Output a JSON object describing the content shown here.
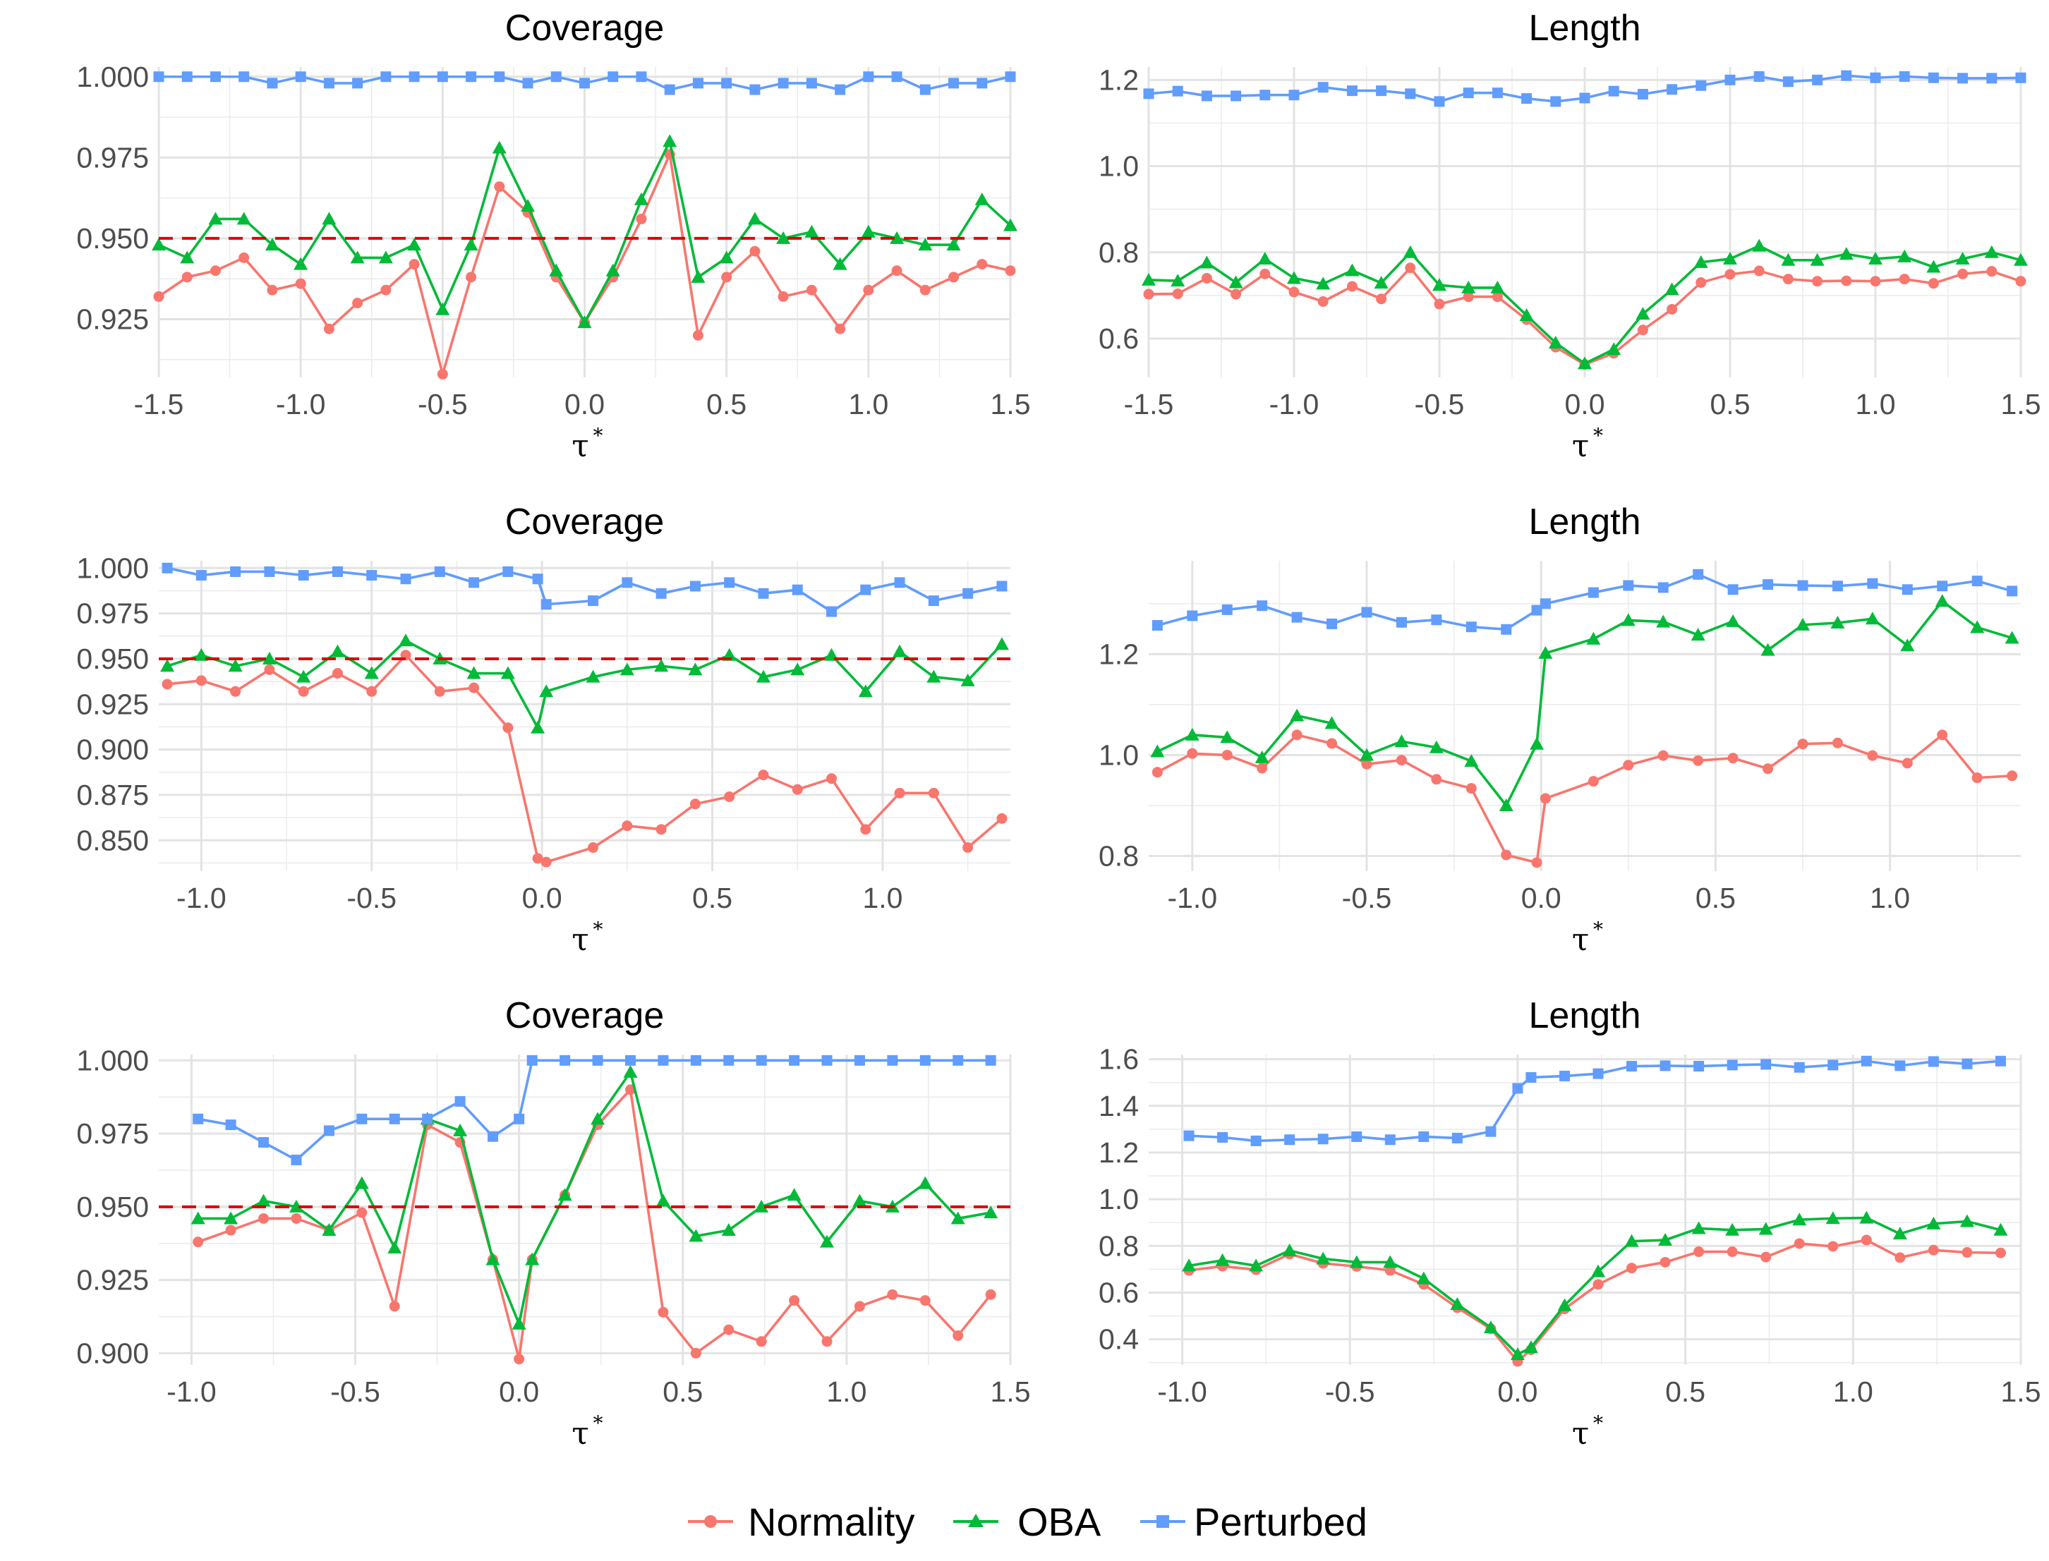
{
  "legend": {
    "entries": [
      {
        "name": "Normality",
        "color": "#F8766D",
        "marker": "circle"
      },
      {
        "name": "OBA",
        "color": "#00BA38",
        "marker": "triangle"
      },
      {
        "name": "Perturbed",
        "color": "#619CFF",
        "marker": "square"
      }
    ]
  },
  "chart_data": [
    {
      "type": "line",
      "title": "Coverage",
      "xlabel": "τ",
      "xlabel_sup": "*",
      "xlim": [
        -1.5,
        1.5
      ],
      "ylim": [
        0.907,
        1.003
      ],
      "xticks": [
        -1.5,
        -1.0,
        -0.5,
        0.0,
        0.5,
        1.0,
        1.5
      ],
      "xtick_labels": [
        "-1.5",
        "-1.0",
        "-0.5",
        "0.0",
        "0.5",
        "1.0",
        "1.5"
      ],
      "yticks": [
        0.925,
        0.95,
        0.975,
        1.0
      ],
      "ytick_labels": [
        "0.925",
        "0.950",
        "0.975",
        "1.000"
      ],
      "hline": 0.95,
      "hline_color": "#E00000",
      "x": [
        -1.5,
        -1.4,
        -1.3,
        -1.2,
        -1.1,
        -1.0,
        -0.9,
        -0.8,
        -0.7,
        -0.6,
        -0.5,
        -0.4,
        -0.3,
        -0.2,
        -0.1,
        0.0,
        0.1,
        0.2,
        0.3,
        0.4,
        0.5,
        0.6,
        0.7,
        0.8,
        0.9,
        1.0,
        1.1,
        1.2,
        1.3,
        1.4,
        1.5
      ],
      "series": [
        {
          "name": "Normality",
          "values": [
            0.932,
            0.938,
            0.94,
            0.944,
            0.934,
            0.936,
            0.922,
            0.93,
            0.934,
            0.942,
            0.908,
            0.938,
            0.966,
            0.958,
            0.938,
            0.924,
            0.938,
            0.956,
            0.976,
            0.92,
            0.938,
            0.946,
            0.932,
            0.934,
            0.922,
            0.934,
            0.94,
            0.934,
            0.938,
            0.942,
            0.94
          ]
        },
        {
          "name": "OBA",
          "values": [
            0.948,
            0.944,
            0.956,
            0.956,
            0.948,
            0.942,
            0.956,
            0.944,
            0.944,
            0.948,
            0.928,
            0.948,
            0.978,
            0.96,
            0.94,
            0.924,
            0.94,
            0.962,
            0.98,
            0.938,
            0.944,
            0.956,
            0.95,
            0.952,
            0.942,
            0.952,
            0.95,
            0.948,
            0.948,
            0.962,
            0.954
          ]
        },
        {
          "name": "Perturbed",
          "values": [
            1.0,
            1.0,
            1.0,
            1.0,
            0.998,
            1.0,
            0.998,
            0.998,
            1.0,
            1.0,
            1.0,
            1.0,
            1.0,
            0.998,
            1.0,
            0.998,
            1.0,
            1.0,
            0.996,
            0.998,
            0.998,
            0.996,
            0.998,
            0.998,
            0.996,
            1.0,
            1.0,
            0.996,
            0.998,
            0.998,
            1.0
          ]
        }
      ]
    },
    {
      "type": "line",
      "title": "Length",
      "xlabel": "τ",
      "xlabel_sup": "*",
      "xlim": [
        -1.5,
        1.5
      ],
      "ylim": [
        0.51,
        1.23
      ],
      "xticks": [
        -1.5,
        -1.0,
        -0.5,
        0.0,
        0.5,
        1.0,
        1.5
      ],
      "xtick_labels": [
        "-1.5",
        "-1.0",
        "-0.5",
        "0.0",
        "0.5",
        "1.0",
        "1.5"
      ],
      "yticks": [
        0.6,
        0.8,
        1.0,
        1.2
      ],
      "ytick_labels": [
        "0.6",
        "0.8",
        "1.0",
        "1.2"
      ],
      "x": [
        -1.5,
        -1.4,
        -1.3,
        -1.2,
        -1.1,
        -1.0,
        -0.9,
        -0.8,
        -0.7,
        -0.6,
        -0.5,
        -0.4,
        -0.3,
        -0.2,
        -0.1,
        0.0,
        0.1,
        0.2,
        0.3,
        0.4,
        0.5,
        0.6,
        0.7,
        0.8,
        0.9,
        1.0,
        1.1,
        1.2,
        1.3,
        1.4,
        1.5
      ],
      "series": [
        {
          "name": "Normality",
          "values": [
            0.703,
            0.704,
            0.74,
            0.703,
            0.75,
            0.708,
            0.686,
            0.721,
            0.692,
            0.764,
            0.68,
            0.697,
            0.697,
            0.644,
            0.58,
            0.54,
            0.566,
            0.62,
            0.668,
            0.73,
            0.749,
            0.757,
            0.738,
            0.733,
            0.734,
            0.733,
            0.738,
            0.728,
            0.75,
            0.756,
            0.733
          ]
        },
        {
          "name": "OBA",
          "values": [
            0.736,
            0.734,
            0.776,
            0.73,
            0.785,
            0.74,
            0.727,
            0.758,
            0.729,
            0.8,
            0.724,
            0.718,
            0.718,
            0.654,
            0.59,
            0.542,
            0.575,
            0.657,
            0.714,
            0.777,
            0.785,
            0.815,
            0.782,
            0.782,
            0.796,
            0.785,
            0.79,
            0.766,
            0.785,
            0.8,
            0.782
          ]
        },
        {
          "name": "Perturbed",
          "values": [
            1.168,
            1.174,
            1.163,
            1.163,
            1.165,
            1.165,
            1.183,
            1.175,
            1.175,
            1.168,
            1.15,
            1.17,
            1.17,
            1.157,
            1.15,
            1.158,
            1.174,
            1.167,
            1.178,
            1.187,
            1.2,
            1.208,
            1.196,
            1.2,
            1.21,
            1.205,
            1.208,
            1.205,
            1.204,
            1.204,
            1.205
          ]
        }
      ]
    },
    {
      "type": "line",
      "title": "Coverage",
      "xlabel": "τ",
      "xlabel_sup": "*",
      "xlim": [
        -1.125,
        1.375
      ],
      "ylim": [
        0.833,
        1.004
      ],
      "xticks": [
        -1.0,
        -0.5,
        0.0,
        0.5,
        1.0
      ],
      "xtick_labels": [
        "-1.0",
        "-0.5",
        "0.0",
        "0.5",
        "1.0"
      ],
      "yticks": [
        0.85,
        0.875,
        0.9,
        0.925,
        0.95,
        0.975,
        1.0
      ],
      "ytick_labels": [
        "0.850",
        "0.875",
        "0.900",
        "0.925",
        "0.950",
        "0.975",
        "1.000"
      ],
      "hline": 0.95,
      "hline_color": "#E00000",
      "x": [
        -1.1,
        -1.0,
        -0.9,
        -0.8,
        -0.7,
        -0.6,
        -0.5,
        -0.4,
        -0.3,
        -0.2,
        -0.1,
        -0.0125,
        0.0125,
        0.15,
        0.25,
        0.35,
        0.45,
        0.55,
        0.65,
        0.75,
        0.85,
        0.95,
        1.05,
        1.15,
        1.25,
        1.35
      ],
      "series": [
        {
          "name": "Normality",
          "values": [
            0.936,
            0.938,
            0.932,
            0.944,
            0.932,
            0.942,
            0.932,
            0.952,
            0.932,
            0.934,
            0.912,
            0.84,
            0.838,
            0.846,
            0.858,
            0.856,
            0.87,
            0.874,
            0.886,
            0.878,
            0.884,
            0.856,
            0.876,
            0.876,
            0.846,
            0.862
          ]
        },
        {
          "name": "OBA",
          "values": [
            0.946,
            0.952,
            0.946,
            0.95,
            0.94,
            0.954,
            0.942,
            0.96,
            0.95,
            0.942,
            0.942,
            0.912,
            0.932,
            0.94,
            0.944,
            0.946,
            0.944,
            0.952,
            0.94,
            0.944,
            0.952,
            0.932,
            0.954,
            0.94,
            0.938,
            0.958
          ]
        },
        {
          "name": "Perturbed",
          "values": [
            1.0,
            0.996,
            0.998,
            0.998,
            0.996,
            0.998,
            0.996,
            0.994,
            0.998,
            0.992,
            0.998,
            0.994,
            0.98,
            0.982,
            0.992,
            0.986,
            0.99,
            0.992,
            0.986,
            0.988,
            0.976,
            0.988,
            0.992,
            0.982,
            0.986,
            0.99
          ]
        }
      ]
    },
    {
      "type": "line",
      "title": "Length",
      "xlabel": "τ",
      "xlabel_sup": "*",
      "xlim": [
        -1.125,
        1.375
      ],
      "ylim": [
        0.77,
        1.385
      ],
      "xticks": [
        -1.0,
        -0.5,
        0.0,
        0.5,
        1.0
      ],
      "xtick_labels": [
        "-1.0",
        "-0.5",
        "0.0",
        "0.5",
        "1.0"
      ],
      "yticks": [
        0.8,
        1.0,
        1.2
      ],
      "ytick_labels": [
        "0.8",
        "1.0",
        "1.2"
      ],
      "x": [
        -1.1,
        -1.0,
        -0.9,
        -0.8,
        -0.7,
        -0.6,
        -0.5,
        -0.4,
        -0.3,
        -0.2,
        -0.1,
        -0.0125,
        0.0125,
        0.15,
        0.25,
        0.35,
        0.45,
        0.55,
        0.65,
        0.75,
        0.85,
        0.95,
        1.05,
        1.15,
        1.25,
        1.35
      ],
      "series": [
        {
          "name": "Normality",
          "values": [
            0.966,
            1.003,
            1.0,
            0.974,
            1.04,
            1.023,
            0.982,
            0.99,
            0.952,
            0.934,
            0.802,
            0.787,
            0.914,
            0.948,
            0.98,
            0.999,
            0.989,
            0.994,
            0.973,
            1.022,
            1.024,
            0.999,
            0.984,
            1.04,
            0.955,
            0.959
          ]
        },
        {
          "name": "OBA",
          "values": [
            1.007,
            1.04,
            1.035,
            0.995,
            1.078,
            1.063,
            1.0,
            1.027,
            1.015,
            0.988,
            0.9,
            1.022,
            1.202,
            1.23,
            1.267,
            1.264,
            1.238,
            1.265,
            1.208,
            1.258,
            1.262,
            1.27,
            1.217,
            1.305,
            1.253,
            1.232
          ]
        },
        {
          "name": "Perturbed",
          "values": [
            1.257,
            1.276,
            1.288,
            1.296,
            1.273,
            1.26,
            1.283,
            1.263,
            1.268,
            1.254,
            1.249,
            1.287,
            1.3,
            1.322,
            1.336,
            1.332,
            1.358,
            1.328,
            1.338,
            1.336,
            1.335,
            1.34,
            1.328,
            1.335,
            1.345,
            1.325
          ]
        }
      ]
    },
    {
      "type": "line",
      "title": "Coverage",
      "xlabel": "τ",
      "xlabel_sup": "*",
      "xlim": [
        -1.1,
        1.5
      ],
      "ylim": [
        0.896,
        1.002
      ],
      "xticks": [
        -1.0,
        -0.5,
        0.0,
        0.5,
        1.0,
        1.5
      ],
      "xtick_labels": [
        "-1.0",
        "-0.5",
        "0.0",
        "0.5",
        "1.0",
        "1.5"
      ],
      "yticks": [
        0.9,
        0.925,
        0.95,
        0.975,
        1.0
      ],
      "ytick_labels": [
        "0.900",
        "0.925",
        "0.950",
        "0.975",
        "1.000"
      ],
      "hline": 0.95,
      "hline_color": "#E00000",
      "x": [
        -0.98,
        -0.88,
        -0.78,
        -0.68,
        -0.58,
        -0.48,
        -0.38,
        -0.28,
        -0.18,
        -0.08,
        0.0,
        0.04,
        0.14,
        0.24,
        0.34,
        0.44,
        0.54,
        0.64,
        0.74,
        0.84,
        0.94,
        1.04,
        1.14,
        1.24,
        1.34,
        1.44
      ],
      "series": [
        {
          "name": "Normality",
          "values": [
            0.938,
            0.942,
            0.946,
            0.946,
            0.942,
            0.948,
            0.916,
            0.978,
            0.972,
            0.932,
            0.898,
            0.932,
            0.954,
            0.978,
            0.99,
            0.914,
            0.9,
            0.908,
            0.904,
            0.918,
            0.904,
            0.916,
            0.92,
            0.918,
            0.906,
            0.92
          ]
        },
        {
          "name": "OBA",
          "values": [
            0.946,
            0.946,
            0.952,
            0.95,
            0.942,
            0.958,
            0.936,
            0.98,
            0.976,
            0.932,
            0.91,
            0.932,
            0.954,
            0.98,
            0.996,
            0.952,
            0.94,
            0.942,
            0.95,
            0.954,
            0.938,
            0.952,
            0.95,
            0.958,
            0.946,
            0.948
          ]
        },
        {
          "name": "Perturbed",
          "values": [
            0.98,
            0.978,
            0.972,
            0.966,
            0.976,
            0.98,
            0.98,
            0.98,
            0.986,
            0.974,
            0.98,
            1.0,
            1.0,
            1.0,
            1.0,
            1.0,
            1.0,
            1.0,
            1.0,
            1.0,
            1.0,
            1.0,
            1.0,
            1.0,
            1.0,
            1.0
          ]
        }
      ]
    },
    {
      "type": "line",
      "title": "Length",
      "xlabel": "τ",
      "xlabel_sup": "*",
      "xlim": [
        -1.1,
        1.5
      ],
      "ylim": [
        0.29,
        1.62
      ],
      "xticks": [
        -1.0,
        -0.5,
        0.0,
        0.5,
        1.0,
        1.5
      ],
      "xtick_labels": [
        "-1.0",
        "-0.5",
        "0.0",
        "0.5",
        "1.0",
        "1.5"
      ],
      "yticks": [
        0.4,
        0.6,
        0.8,
        1.0,
        1.2,
        1.4,
        1.6
      ],
      "ytick_labels": [
        "0.4",
        "0.6",
        "0.8",
        "1.0",
        "1.2",
        "1.4",
        "1.6"
      ],
      "x": [
        -0.98,
        -0.88,
        -0.78,
        -0.68,
        -0.58,
        -0.48,
        -0.38,
        -0.28,
        -0.18,
        -0.08,
        0.0,
        0.04,
        0.14,
        0.24,
        0.34,
        0.44,
        0.54,
        0.64,
        0.74,
        0.84,
        0.94,
        1.04,
        1.14,
        1.24,
        1.34,
        1.44
      ],
      "series": [
        {
          "name": "Normality",
          "values": [
            0.695,
            0.713,
            0.698,
            0.765,
            0.725,
            0.712,
            0.695,
            0.635,
            0.535,
            0.445,
            0.305,
            0.355,
            0.53,
            0.635,
            0.705,
            0.73,
            0.775,
            0.775,
            0.752,
            0.81,
            0.798,
            0.825,
            0.75,
            0.782,
            0.772,
            0.77
          ]
        },
        {
          "name": "OBA",
          "values": [
            0.715,
            0.738,
            0.715,
            0.78,
            0.745,
            0.73,
            0.73,
            0.66,
            0.55,
            0.45,
            0.335,
            0.365,
            0.545,
            0.69,
            0.82,
            0.825,
            0.875,
            0.868,
            0.872,
            0.912,
            0.918,
            0.92,
            0.852,
            0.895,
            0.905,
            0.868
          ]
        },
        {
          "name": "Perturbed",
          "values": [
            1.272,
            1.265,
            1.25,
            1.255,
            1.258,
            1.268,
            1.255,
            1.268,
            1.262,
            1.29,
            1.475,
            1.522,
            1.528,
            1.538,
            1.57,
            1.572,
            1.57,
            1.575,
            1.578,
            1.565,
            1.575,
            1.592,
            1.572,
            1.59,
            1.58,
            1.592
          ]
        }
      ]
    }
  ]
}
